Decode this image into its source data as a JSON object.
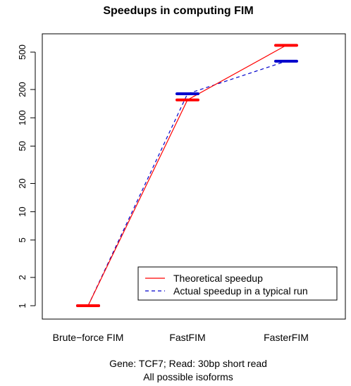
{
  "chart_data": {
    "type": "line",
    "title": "Speedups in computing FIM",
    "subtitle_lines": [
      "Gene: TCF7; Read: 30bp short read",
      "All possible isoforms"
    ],
    "xlabel": "",
    "ylabel": "",
    "y_scale": "log",
    "ylim": [
      0.8,
      750
    ],
    "y_ticks": [
      1,
      2,
      5,
      10,
      20,
      50,
      100,
      200,
      500
    ],
    "y_tick_labels": [
      "1",
      "2",
      "5",
      "10",
      "20",
      "50",
      "100",
      "200",
      "500"
    ],
    "categories": [
      "Brute−force FIM",
      "FastFIM",
      "FasterFIM"
    ],
    "grid": false,
    "legend_position": "bottom-right",
    "series": [
      {
        "name": "Theoretical speedup",
        "style": "solid",
        "color": "#ff0000",
        "values": [
          1,
          155,
          590
        ]
      },
      {
        "name": "Actual speedup in a typical run",
        "style": "dashed",
        "color": "#0000cc",
        "values": [
          1,
          180,
          400
        ]
      }
    ]
  }
}
